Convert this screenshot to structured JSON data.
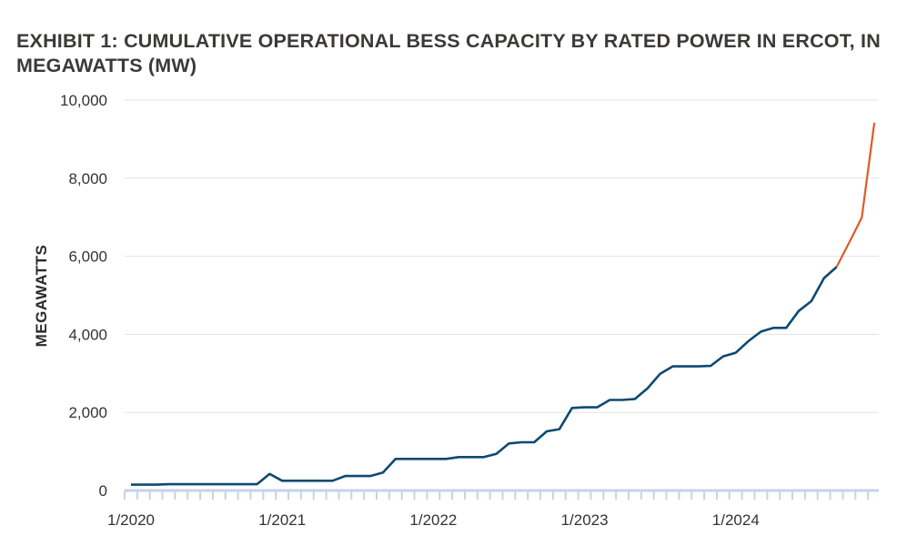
{
  "chart_data": {
    "type": "line",
    "title": "EXHIBIT 1: CUMULATIVE OPERATIONAL BESS CAPACITY BY RATED POWER IN ERCOT, IN MEGAWATTS (MW)",
    "xlabel": "",
    "ylabel": "MEGAWATTS",
    "ylim": [
      0,
      10000
    ],
    "yticks": [
      "0",
      "2,000",
      "4,000",
      "6,000",
      "8,000",
      "10,000"
    ],
    "yticks_values": [
      0,
      2000,
      4000,
      6000,
      8000,
      10000
    ],
    "xtick_labels": [
      "1/2020",
      "1/2021",
      "1/2022",
      "1/2023",
      "1/2024"
    ],
    "x_start": "1/2020",
    "x_end": "12/2024",
    "x_interval": "monthly",
    "grid": "horizontal",
    "colors": {
      "historical": "#0d4a72",
      "projected": "#e05a26",
      "grid": "#e3e3e3",
      "axis": "#c5d3ea"
    },
    "series": [
      {
        "x": [
          "1/2020",
          "2/2020",
          "3/2020",
          "4/2020",
          "5/2020",
          "6/2020",
          "7/2020",
          "8/2020",
          "9/2020",
          "10/2020",
          "11/2020",
          "12/2020",
          "1/2021",
          "2/2021",
          "3/2021",
          "4/2021",
          "5/2021",
          "6/2021",
          "7/2021",
          "8/2021",
          "9/2021",
          "10/2021",
          "11/2021",
          "12/2021",
          "1/2022",
          "2/2022",
          "3/2022",
          "4/2022",
          "5/2022",
          "6/2022",
          "7/2022",
          "8/2022",
          "9/2022",
          "10/2022",
          "11/2022",
          "12/2022",
          "1/2023",
          "2/2023",
          "3/2023",
          "4/2023",
          "5/2023",
          "6/2023",
          "7/2023",
          "8/2023",
          "9/2023",
          "10/2023",
          "11/2023",
          "12/2023",
          "1/2024",
          "2/2024",
          "3/2024",
          "4/2024",
          "5/2024",
          "6/2024",
          "7/2024",
          "8/2024",
          "9/2024"
        ],
        "values": [
          150,
          150,
          150,
          160,
          160,
          160,
          160,
          160,
          160,
          160,
          160,
          425,
          250,
          250,
          250,
          250,
          250,
          370,
          370,
          370,
          460,
          810,
          810,
          810,
          810,
          810,
          855,
          855,
          855,
          940,
          1205,
          1235,
          1235,
          1515,
          1570,
          2115,
          2130,
          2130,
          2320,
          2320,
          2345,
          2620,
          2990,
          3180,
          3180,
          3180,
          3190,
          3435,
          3530,
          3825,
          4070,
          4165,
          4165,
          4600,
          4850,
          5440,
          5725
        ]
      },
      {
        "x": [
          "9/2024",
          "10/2024",
          "11/2024",
          "12/2024"
        ],
        "values": [
          5725,
          6350,
          6990,
          9420
        ]
      }
    ]
  }
}
